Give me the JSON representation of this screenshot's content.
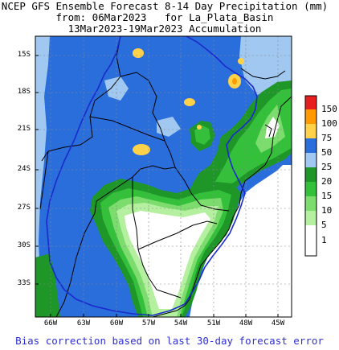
{
  "header": {
    "line1": "NCEP GFS Ensemble Forecast 8-14 Day Precipitation (mm)",
    "line2": "from: 06Mar2023   for La_Plata_Basin",
    "line3": "13Mar2023-19Mar2023 Accumulation"
  },
  "axes": {
    "lat_labels": [
      "15S",
      "18S",
      "21S",
      "24S",
      "27S",
      "30S",
      "33S"
    ],
    "lon_labels": [
      "66W",
      "63W",
      "60W",
      "57W",
      "54W",
      "51W",
      "48W",
      "45W"
    ],
    "lat_range": [
      -35.5,
      -12.5
    ],
    "lon_range": [
      -68,
      -44
    ]
  },
  "colorbar": {
    "labels": [
      "150",
      "100",
      "75",
      "50",
      "25",
      "20",
      "15",
      "10",
      "5",
      "1"
    ],
    "colors": [
      "#e81e1e",
      "#ff9b00",
      "#ffd24a",
      "#2a6edc",
      "#a0c8f0",
      "#1e9628",
      "#35c03c",
      "#7ddc6e",
      "#b4f0a0",
      "#ffffff"
    ]
  },
  "footer": "Bias correction based on last 30-day forecast error"
}
